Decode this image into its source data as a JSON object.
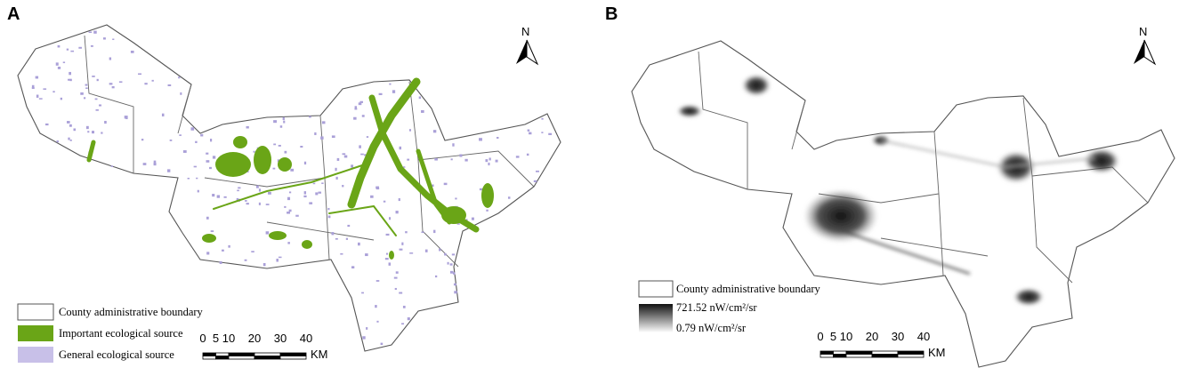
{
  "panels": [
    {
      "label": "A",
      "north": "N",
      "legend": [
        "County administrative boundary",
        "Important ecological source",
        "General ecological source"
      ],
      "scale": {
        "ticks": [
          0,
          5,
          10,
          20,
          30,
          40
        ],
        "unit": "KM"
      }
    },
    {
      "label": "B",
      "north": "N",
      "legend": {
        "boundary": "County administrative boundary",
        "max": "721.52 nW/cm²/sr",
        "min": "0.79 nW/cm²/sr"
      },
      "scale": {
        "ticks": [
          0,
          5,
          10,
          20,
          30,
          40
        ],
        "unit": "KM"
      }
    }
  ]
}
